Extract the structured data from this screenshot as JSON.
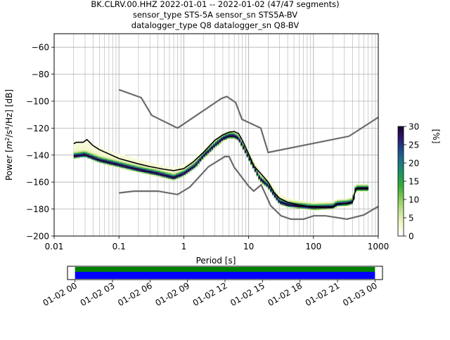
{
  "title_lines": [
    "BK.CLRV.00.HHZ   2022-01-01 -- 2022-01-02  (47/47 segments)",
    "sensor_type STS-5A sensor_sn STS5A-BV",
    "datalogger_type Q8 datalogger_sn Q8-BV"
  ],
  "colors": {
    "noise_model": "#6b6b6b",
    "mean_curve": "#000000",
    "coverage_green": "#008000",
    "coverage_blue": "#0000ff",
    "grid": "#b0b0b0"
  },
  "chart_data": [
    {
      "type": "heatmap",
      "subtype": "probabilistic-power-spectral-density",
      "xlabel": "Period [s]",
      "ylabel": "Power [m²/s⁴/Hz] [dB]",
      "ylabel_parts": {
        "pre": "Power [",
        "m": "m",
        "sup2": "2",
        "mid": "/s",
        "sup4": "4",
        "post": "/Hz] [dB]"
      },
      "xscale": "log",
      "xlim": [
        0.01,
        1000
      ],
      "ylim": [
        -200,
        -50
      ],
      "xticks": [
        {
          "value": 0.01,
          "label": "0.01"
        },
        {
          "value": 0.1,
          "label": "0.1"
        },
        {
          "value": 1,
          "label": "1"
        },
        {
          "value": 10,
          "label": "10"
        },
        {
          "value": 100,
          "label": "100"
        },
        {
          "value": 1000,
          "label": "1000"
        }
      ],
      "yticks": [
        {
          "value": -60,
          "label": "−60"
        },
        {
          "value": -80,
          "label": "−80"
        },
        {
          "value": -100,
          "label": "−100"
        },
        {
          "value": -120,
          "label": "−120"
        },
        {
          "value": -140,
          "label": "−140"
        },
        {
          "value": -160,
          "label": "−160"
        },
        {
          "value": -180,
          "label": "−180"
        },
        {
          "value": -200,
          "label": "−200"
        }
      ],
      "grid": true,
      "colorbar": {
        "label": "[%]",
        "range": [
          0,
          30
        ],
        "ticks": [
          {
            "value": 0,
            "label": "0"
          },
          {
            "value": 5,
            "label": "5"
          },
          {
            "value": 10,
            "label": "10"
          },
          {
            "value": 15,
            "label": "15"
          },
          {
            "value": 20,
            "label": "20"
          },
          {
            "value": 25,
            "label": "25"
          },
          {
            "value": 30,
            "label": "30"
          }
        ],
        "colormap": [
          "#ffffff",
          "#f3f7c8",
          "#c8e49a",
          "#8ccd5c",
          "#3fae3a",
          "#1d9a58",
          "#1f7a86",
          "#1e4f8c",
          "#2d1a6e",
          "#1a0030"
        ]
      },
      "noise_models": {
        "high": [
          [
            0.1,
            -91.5
          ],
          [
            0.22,
            -97.4
          ],
          [
            0.32,
            -110.5
          ],
          [
            0.8,
            -120
          ],
          [
            3.8,
            -98
          ],
          [
            4.6,
            -96.5
          ],
          [
            6.3,
            -101
          ],
          [
            7.9,
            -113.5
          ],
          [
            15.4,
            -120
          ],
          [
            20,
            -138
          ],
          [
            354,
            -126
          ],
          [
            1000,
            -112
          ]
        ],
        "low": [
          [
            0.1,
            -168
          ],
          [
            0.17,
            -166.7
          ],
          [
            0.4,
            -166.7
          ],
          [
            0.8,
            -169.2
          ],
          [
            1.24,
            -163.7
          ],
          [
            2.4,
            -148.6
          ],
          [
            4.3,
            -141.1
          ],
          [
            5,
            -141.1
          ],
          [
            6,
            -149
          ],
          [
            10,
            -163
          ],
          [
            12,
            -166.7
          ],
          [
            15.6,
            -162
          ],
          [
            21.9,
            -177.5
          ],
          [
            31.6,
            -185
          ],
          [
            45,
            -187.5
          ],
          [
            70,
            -187.5
          ],
          [
            101,
            -185
          ],
          [
            154,
            -185
          ],
          [
            328,
            -187.5
          ],
          [
            600,
            -184.4
          ],
          [
            1000,
            -178
          ]
        ]
      },
      "mean": [
        [
          0.02,
          -131.5
        ],
        [
          0.022,
          -130.5
        ],
        [
          0.028,
          -130.5
        ],
        [
          0.032,
          -128.5
        ],
        [
          0.04,
          -133
        ],
        [
          0.05,
          -136
        ],
        [
          0.1,
          -142.5
        ],
        [
          0.2,
          -146.5
        ],
        [
          0.3,
          -148.5
        ],
        [
          0.5,
          -150.5
        ],
        [
          0.7,
          -151.5
        ],
        [
          1,
          -150
        ],
        [
          1.4,
          -145
        ],
        [
          2,
          -138
        ],
        [
          3,
          -129
        ],
        [
          4,
          -125
        ],
        [
          5,
          -123
        ],
        [
          6,
          -122.5
        ],
        [
          7,
          -124
        ],
        [
          8,
          -129
        ],
        [
          10,
          -139
        ],
        [
          12,
          -148
        ],
        [
          15,
          -153
        ],
        [
          20,
          -160
        ],
        [
          25,
          -168
        ],
        [
          30,
          -172
        ],
        [
          40,
          -175
        ],
        [
          60,
          -177
        ],
        [
          80,
          -178
        ],
        [
          100,
          -178
        ],
        [
          150,
          -179
        ],
        [
          200,
          -178.5
        ],
        [
          230,
          -176.5
        ],
        [
          330,
          -176
        ],
        [
          400,
          -175
        ],
        [
          450,
          -165
        ],
        [
          500,
          -164.5
        ],
        [
          700,
          -164.5
        ]
      ],
      "density_ridge": [
        [
          0.02,
          -141
        ],
        [
          0.03,
          -140
        ],
        [
          0.05,
          -144
        ],
        [
          0.1,
          -147.5
        ],
        [
          0.2,
          -151
        ],
        [
          0.4,
          -154
        ],
        [
          0.7,
          -157
        ],
        [
          1,
          -154
        ],
        [
          1.5,
          -148
        ],
        [
          2,
          -141
        ],
        [
          3,
          -133
        ],
        [
          4,
          -128
        ],
        [
          5,
          -126
        ],
        [
          6,
          -126
        ],
        [
          7,
          -128
        ],
        [
          8,
          -133
        ],
        [
          10,
          -142
        ],
        [
          15,
          -158
        ],
        [
          20,
          -163
        ],
        [
          25,
          -170
        ],
        [
          30,
          -175
        ],
        [
          40,
          -177
        ],
        [
          60,
          -178
        ],
        [
          100,
          -179
        ],
        [
          200,
          -178.5
        ],
        [
          230,
          -176.5
        ],
        [
          330,
          -176
        ],
        [
          400,
          -175
        ],
        [
          450,
          -165
        ],
        [
          700,
          -165
        ]
      ],
      "upper_spread": [
        [
          0.02,
          -116
        ],
        [
          0.03,
          -114
        ],
        [
          0.05,
          -120
        ],
        [
          0.1,
          -127
        ],
        [
          0.2,
          -132
        ],
        [
          0.5,
          -138
        ],
        [
          1,
          -138
        ],
        [
          2,
          -130
        ],
        [
          4,
          -120
        ],
        [
          6,
          -119
        ],
        [
          10,
          -130
        ],
        [
          15,
          -146
        ],
        [
          20,
          -150
        ],
        [
          30,
          -160
        ],
        [
          60,
          -170
        ],
        [
          100,
          -172
        ],
        [
          200,
          -172
        ],
        [
          330,
          -171
        ],
        [
          450,
          -161
        ],
        [
          700,
          -161
        ]
      ],
      "lower_spread": [
        [
          0.02,
          -143
        ],
        [
          0.03,
          -141
        ],
        [
          0.05,
          -146
        ],
        [
          0.1,
          -151
        ],
        [
          0.2,
          -154
        ],
        [
          0.4,
          -158
        ],
        [
          0.7,
          -162
        ],
        [
          1,
          -160
        ],
        [
          1.5,
          -152
        ],
        [
          2,
          -145
        ],
        [
          3,
          -137
        ],
        [
          4,
          -130
        ],
        [
          6,
          -128
        ],
        [
          8,
          -136
        ],
        [
          10,
          -147
        ],
        [
          15,
          -163
        ],
        [
          20,
          -167
        ],
        [
          30,
          -178
        ],
        [
          60,
          -180
        ],
        [
          100,
          -181
        ],
        [
          200,
          -181
        ],
        [
          330,
          -179
        ],
        [
          450,
          -168
        ],
        [
          700,
          -168
        ]
      ]
    },
    {
      "type": "bar",
      "subtype": "data-coverage-timeline",
      "xticks": [
        "01-02 00",
        "01-02 03",
        "01-02 06",
        "01-02 09",
        "01-02 12",
        "01-02 15",
        "01-02 18",
        "01-02 21",
        "01-03 00"
      ],
      "x_range_hours": [
        -0.6,
        24.6
      ],
      "coverage_hours": [
        0,
        24
      ]
    }
  ]
}
